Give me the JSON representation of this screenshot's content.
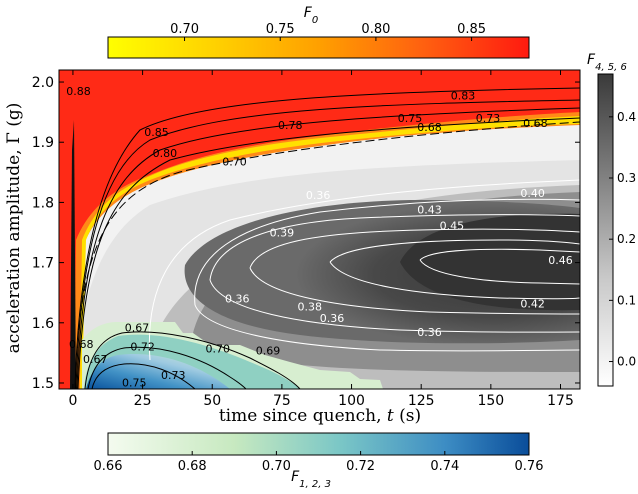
{
  "chart_data": {
    "type": "contour",
    "xlabel": "time since quench, t (s)",
    "ylabel": "acceleration amplitude, Γ (g)",
    "xlim": [
      -5,
      182
    ],
    "ylim": [
      1.49,
      2.02
    ],
    "xticks": [
      0,
      25,
      50,
      75,
      100,
      125,
      150,
      175
    ],
    "yticks": [
      1.5,
      1.6,
      1.7,
      1.8,
      1.9,
      2.0
    ],
    "tick_labels": {
      "x": [
        "0",
        "25",
        "50",
        "75",
        "100",
        "125",
        "150",
        "175"
      ],
      "y": [
        "1.5",
        "1.6",
        "1.7",
        "1.8",
        "1.9",
        "2.0"
      ]
    },
    "colorbars": [
      {
        "field": "F_0",
        "label": "F",
        "label_sub": "0",
        "colormap": "yellow-orange-red",
        "range": [
          0.66,
          0.88
        ],
        "ticks": [
          0.7,
          0.75,
          0.8,
          0.85
        ],
        "tick_labels": [
          "0.70",
          "0.75",
          "0.80",
          "0.85"
        ],
        "placement": "top"
      },
      {
        "field": "F_{4,5,6}",
        "label": "F",
        "label_sub": "4, 5, 6",
        "colormap": "greys",
        "range": [
          -0.04,
          0.47
        ],
        "ticks": [
          0.0,
          0.1,
          0.2,
          0.3,
          0.4
        ],
        "tick_labels": [
          "0.0",
          "0.1",
          "0.2",
          "0.3",
          "0.4"
        ],
        "placement": "right"
      },
      {
        "field": "F_{1,2,3}",
        "label": "F",
        "label_sub": "1, 2, 3",
        "colormap": "green-blue",
        "range": [
          0.66,
          0.76
        ],
        "ticks": [
          0.66,
          0.68,
          0.7,
          0.72,
          0.74,
          0.76
        ],
        "tick_labels": [
          "0.66",
          "0.68",
          "0.70",
          "0.72",
          "0.74",
          "0.76"
        ],
        "placement": "bottom"
      }
    ],
    "contour_labels": {
      "F_0": [
        {
          "x": 2,
          "y": 1.985,
          "label": "0.88"
        },
        {
          "x": 30,
          "y": 1.917,
          "label": "0.85"
        },
        {
          "x": 33,
          "y": 1.882,
          "label": "0.80"
        },
        {
          "x": 58,
          "y": 1.868,
          "label": "0.70"
        },
        {
          "x": 78,
          "y": 1.929,
          "label": "0.78"
        },
        {
          "x": 121,
          "y": 1.94,
          "label": "0.75"
        },
        {
          "x": 128,
          "y": 1.925,
          "label": "0.68"
        },
        {
          "x": 140,
          "y": 1.978,
          "label": "0.83"
        },
        {
          "x": 149,
          "y": 1.94,
          "label": "0.73"
        },
        {
          "x": 166,
          "y": 1.932,
          "label": "0.68"
        },
        {
          "x": 3,
          "y": 1.565,
          "label": "0.68"
        }
      ],
      "F_123": [
        {
          "x": 23,
          "y": 1.592,
          "label": "0.67"
        },
        {
          "x": 8,
          "y": 1.54,
          "label": "0.67"
        },
        {
          "x": 25,
          "y": 1.561,
          "label": "0.72"
        },
        {
          "x": 52,
          "y": 1.557,
          "label": "0.70"
        },
        {
          "x": 70,
          "y": 1.554,
          "label": "0.69"
        },
        {
          "x": 22,
          "y": 1.501,
          "label": "0.75"
        },
        {
          "x": 36,
          "y": 1.513,
          "label": "0.73"
        }
      ],
      "F_456": [
        {
          "x": 88,
          "y": 1.812,
          "label": "0.36"
        },
        {
          "x": 75,
          "y": 1.75,
          "label": "0.39"
        },
        {
          "x": 128,
          "y": 1.788,
          "label": "0.43"
        },
        {
          "x": 136,
          "y": 1.762,
          "label": "0.45"
        },
        {
          "x": 165,
          "y": 1.816,
          "label": "0.40"
        },
        {
          "x": 175,
          "y": 1.704,
          "label": "0.46"
        },
        {
          "x": 59,
          "y": 1.64,
          "label": "0.36"
        },
        {
          "x": 85,
          "y": 1.627,
          "label": "0.38"
        },
        {
          "x": 93,
          "y": 1.608,
          "label": "0.36"
        },
        {
          "x": 128,
          "y": 1.585,
          "label": "0.36"
        },
        {
          "x": 165,
          "y": 1.632,
          "label": "0.42"
        }
      ]
    }
  }
}
